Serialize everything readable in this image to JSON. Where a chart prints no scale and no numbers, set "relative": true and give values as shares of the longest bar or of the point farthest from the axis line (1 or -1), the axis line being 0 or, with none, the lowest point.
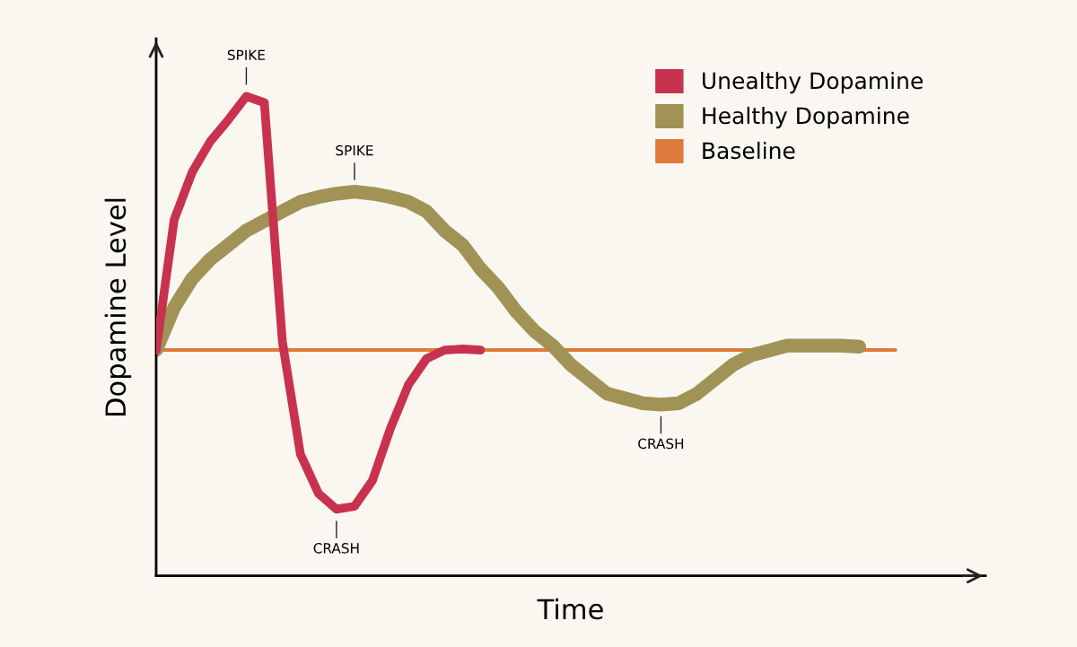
{
  "chart_data": {
    "type": "line",
    "relative": true,
    "xlabel": "Time",
    "ylabel": "Dopamine Level",
    "legend": "top right",
    "marker": "none",
    "line_style": "solid",
    "categories": [
      null,
      null,
      null,
      null,
      null,
      null,
      null,
      null,
      null,
      null,
      null,
      null,
      null,
      null,
      null,
      null,
      null,
      null,
      null,
      null,
      null,
      null,
      null,
      null,
      null,
      null,
      null,
      null,
      null,
      null,
      null,
      null,
      null,
      null,
      null,
      null,
      null,
      null,
      null,
      null,
      null,
      null,
      null,
      null,
      null,
      null
    ],
    "series": [
      {
        "name": "Unealthy Dopamine",
        "color": "#c8324f",
        "values": [
          0.471,
          0.743,
          0.842,
          0.906,
          0.951,
          1.0,
          0.987,
          0.489,
          0.254,
          0.172,
          0.139,
          0.145,
          0.199,
          0.308,
          0.399,
          0.453,
          0.471,
          0.473,
          0.471,
          null,
          null,
          null,
          null,
          null,
          null,
          null,
          null,
          null,
          null,
          null,
          null,
          null,
          null,
          null,
          null,
          null,
          null,
          null,
          null,
          null,
          null,
          null,
          null,
          null,
          null,
          null
        ]
      },
      {
        "name": "Healthy Dopamine",
        "color": "#a09355",
        "values": [
          0.471,
          0.56,
          0.62,
          0.66,
          0.69,
          0.72,
          0.74,
          0.76,
          0.78,
          0.79,
          0.797,
          0.801,
          0.797,
          0.79,
          0.78,
          0.76,
          0.72,
          0.69,
          0.64,
          0.6,
          0.55,
          0.51,
          0.48,
          0.44,
          0.41,
          0.38,
          0.37,
          0.36,
          0.357,
          0.36,
          0.38,
          0.41,
          0.44,
          0.46,
          0.47,
          0.48,
          0.48,
          0.48,
          0.48,
          0.478,
          null,
          null,
          null,
          null,
          null,
          null
        ]
      },
      {
        "name": "Baseline",
        "color": "#e07a3a",
        "values": [
          0.471,
          0.471,
          0.471,
          0.471,
          0.471,
          0.471,
          0.471,
          0.471,
          0.471,
          0.471,
          0.471,
          0.471,
          0.471,
          0.471,
          0.471,
          0.471,
          0.471,
          0.471,
          0.471,
          0.471,
          0.471,
          0.471,
          0.471,
          0.471,
          0.471,
          0.471,
          0.471,
          0.471,
          0.471,
          0.471,
          0.471,
          0.471,
          0.471,
          0.471,
          0.471,
          0.471,
          0.471,
          0.471,
          0.471,
          0.471,
          0.471,
          0.471,
          null,
          null,
          null,
          null
        ]
      }
    ],
    "annotations": [
      {
        "text": "SPIKE",
        "y": 1.0
      },
      {
        "text": "CRASH",
        "y": 0.139
      },
      {
        "text": "SPIKE",
        "y": 0.801
      },
      {
        "text": "CRASH",
        "y": 0.357
      }
    ]
  }
}
